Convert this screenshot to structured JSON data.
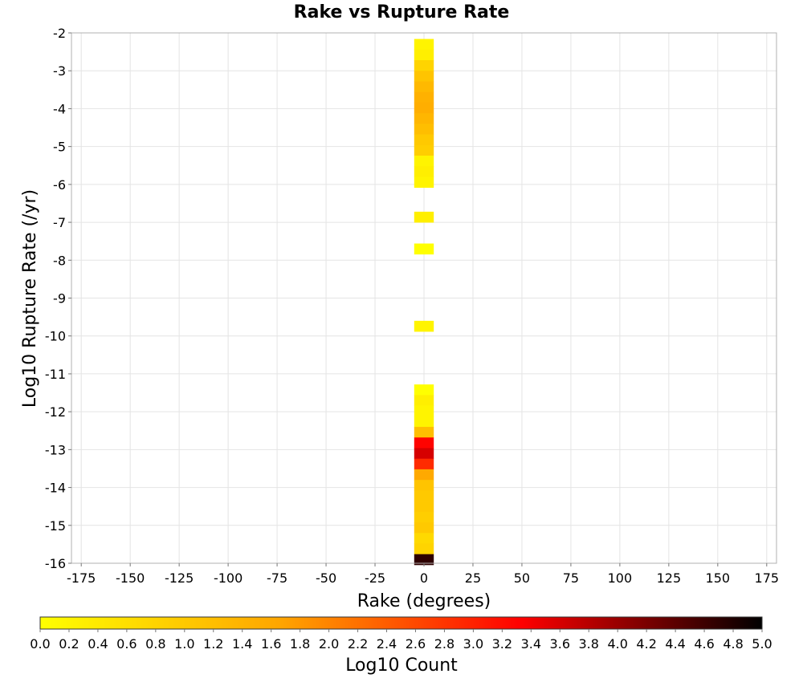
{
  "chart_data": {
    "type": "heatmap",
    "title": "Rake vs Rupture Rate",
    "xlabel": "Rake (degrees)",
    "ylabel": "Log10 Rupture Rate (/yr)",
    "xlim": [
      -180,
      180
    ],
    "ylim": [
      -16,
      -2
    ],
    "x_ticks": [
      -175,
      -150,
      -125,
      -100,
      -75,
      -50,
      -25,
      0,
      25,
      50,
      75,
      100,
      125,
      150,
      175
    ],
    "y_ticks": [
      -2,
      -3,
      -4,
      -5,
      -6,
      -7,
      -8,
      -9,
      -10,
      -11,
      -12,
      -13,
      -14,
      -15,
      -16
    ],
    "grid": true,
    "bin_width": 10,
    "bin_height": 0.28,
    "cells": [
      {
        "x": 0,
        "y": -2.3,
        "value": 0.2
      },
      {
        "x": 0,
        "y": -2.58,
        "value": 0.3
      },
      {
        "x": 0,
        "y": -2.86,
        "value": 0.8
      },
      {
        "x": 0,
        "y": -3.14,
        "value": 1.1
      },
      {
        "x": 0,
        "y": -3.42,
        "value": 1.3
      },
      {
        "x": 0,
        "y": -3.7,
        "value": 1.45
      },
      {
        "x": 0,
        "y": -3.98,
        "value": 1.5
      },
      {
        "x": 0,
        "y": -4.26,
        "value": 1.35
      },
      {
        "x": 0,
        "y": -4.54,
        "value": 1.2
      },
      {
        "x": 0,
        "y": -4.82,
        "value": 1.0
      },
      {
        "x": 0,
        "y": -5.1,
        "value": 0.9
      },
      {
        "x": 0,
        "y": -5.38,
        "value": 0.2
      },
      {
        "x": 0,
        "y": -5.66,
        "value": 0.3
      },
      {
        "x": 0,
        "y": -5.94,
        "value": 0.2
      },
      {
        "x": 0,
        "y": -6.86,
        "value": 0.3
      },
      {
        "x": 0,
        "y": -7.7,
        "value": 0.0
      },
      {
        "x": 0,
        "y": -9.74,
        "value": 0.2
      },
      {
        "x": 0,
        "y": -11.42,
        "value": 0.0
      },
      {
        "x": 0,
        "y": -11.7,
        "value": 0.3
      },
      {
        "x": 0,
        "y": -11.98,
        "value": 0.2
      },
      {
        "x": 0,
        "y": -12.26,
        "value": 0.2
      },
      {
        "x": 0,
        "y": -12.54,
        "value": 1.2
      },
      {
        "x": 0,
        "y": -12.82,
        "value": 3.3
      },
      {
        "x": 0,
        "y": -13.1,
        "value": 3.6
      },
      {
        "x": 0,
        "y": -13.38,
        "value": 2.9
      },
      {
        "x": 0,
        "y": -13.66,
        "value": 1.6
      },
      {
        "x": 0,
        "y": -13.94,
        "value": 1.1
      },
      {
        "x": 0,
        "y": -14.22,
        "value": 1.0
      },
      {
        "x": 0,
        "y": -14.5,
        "value": 1.0
      },
      {
        "x": 0,
        "y": -14.78,
        "value": 0.9
      },
      {
        "x": 0,
        "y": -15.06,
        "value": 1.0
      },
      {
        "x": 0,
        "y": -15.34,
        "value": 0.7
      },
      {
        "x": 0,
        "y": -15.62,
        "value": 0.8
      },
      {
        "x": 0,
        "y": -15.9,
        "value": 4.7
      }
    ],
    "colorbar": {
      "label": "Log10 Count",
      "range": [
        0.0,
        5.0
      ],
      "ticks": [
        "0.0",
        "0.2",
        "0.4",
        "0.6",
        "0.8",
        "1.0",
        "1.2",
        "1.4",
        "1.6",
        "1.8",
        "2.0",
        "2.2",
        "2.4",
        "2.6",
        "2.8",
        "3.0",
        "3.2",
        "3.4",
        "3.6",
        "3.8",
        "4.0",
        "4.2",
        "4.4",
        "4.6",
        "4.8",
        "5.0"
      ],
      "colors": [
        "#ffff00",
        "#ffa500",
        "#ff0000",
        "#000000"
      ]
    }
  }
}
